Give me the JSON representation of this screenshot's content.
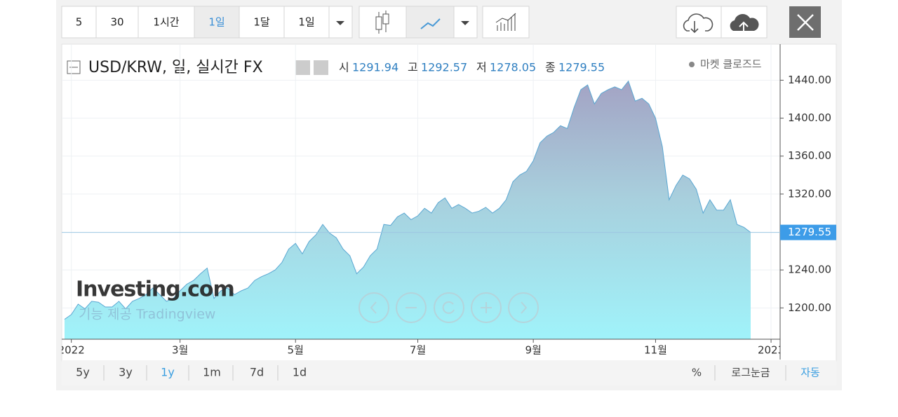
{
  "toolbar": {
    "intervals": [
      "5",
      "30",
      "1시간",
      "1일",
      "1달",
      "1일"
    ]
  },
  "chart_data": {
    "type": "area",
    "title": "USD/KRW, 일, 실시간 FX",
    "ohlc": [
      {
        "label": "시",
        "value": 1291.94
      },
      {
        "label": "고",
        "value": 1292.57
      },
      {
        "label": "저",
        "value": 1278.05
      },
      {
        "label": "종",
        "value": 1279.55
      }
    ],
    "status": "마켓 클로즈드",
    "brand": "Investing.com",
    "credit": "기능 제공 Tradingview",
    "categories": [
      null,
      "2022",
      null,
      null,
      null,
      null,
      null,
      null,
      null,
      null,
      null,
      null,
      null,
      null,
      null,
      null,
      null,
      "3월",
      null,
      null,
      null,
      null,
      null,
      null,
      null,
      null,
      null,
      null,
      null,
      null,
      null,
      null,
      null,
      null,
      "5월",
      null,
      null,
      null,
      null,
      null,
      null,
      null,
      null,
      null,
      null,
      null,
      null,
      null,
      null,
      null,
      null,
      null,
      "7월",
      null,
      null,
      null,
      null,
      null,
      null,
      null,
      null,
      null,
      null,
      null,
      null,
      null,
      null,
      null,
      null,
      "9월",
      null,
      null,
      null,
      null,
      null,
      null,
      null,
      null,
      null,
      null,
      null,
      null,
      null,
      null,
      null,
      null,
      null,
      "11월",
      null,
      null,
      null,
      null,
      null,
      null,
      null,
      null,
      null,
      null,
      null,
      null,
      null,
      null,
      null,
      null,
      "2023"
    ],
    "values": [
      1188,
      1193,
      1204,
      1199,
      1207,
      1206,
      1201,
      1201,
      1207,
      1199,
      1207,
      1210,
      1214,
      1221,
      1214,
      1207,
      1210,
      1218,
      1225,
      1229,
      1236,
      1242,
      1210,
      1218,
      1221,
      1214,
      1218,
      1221,
      1229,
      1233,
      1236,
      1240,
      1248,
      1262,
      1268,
      1257,
      1270,
      1277,
      1288,
      1279,
      1274,
      1262,
      1255,
      1236,
      1243,
      1255,
      1262,
      1288,
      1287,
      1296,
      1300,
      1293,
      1297,
      1305,
      1300,
      1311,
      1316,
      1305,
      1309,
      1305,
      1300,
      1302,
      1306,
      1300,
      1305,
      1314,
      1333,
      1340,
      1344,
      1355,
      1374,
      1381,
      1385,
      1392,
      1389,
      1411,
      1430,
      1435,
      1415,
      1426,
      1430,
      1433,
      1430,
      1439,
      1418,
      1421,
      1415,
      1400,
      1370,
      1314,
      1329,
      1340,
      1336,
      1325,
      1300,
      1314,
      1303,
      1303,
      1314,
      1288,
      1285,
      1279.55,
      null,
      null,
      null
    ],
    "color": "#5aa7d2",
    "last_price": 1279.55,
    "ylim": [
      1167,
      1478
    ],
    "yticks": [
      {
        "value": 1200,
        "label": "1200.00"
      },
      {
        "value": 1240,
        "label": "1240.00"
      },
      {
        "value": 1320,
        "label": "1320.00"
      },
      {
        "value": 1360,
        "label": "1360.00"
      },
      {
        "value": 1400,
        "label": "1400.00"
      },
      {
        "value": 1440,
        "label": "1440.00"
      }
    ],
    "grid": true
  },
  "ranges": [
    "5y",
    "3y",
    "1y",
    "1m",
    "7d",
    "1d"
  ],
  "options": [
    "%",
    "로그눈금",
    "자동"
  ]
}
